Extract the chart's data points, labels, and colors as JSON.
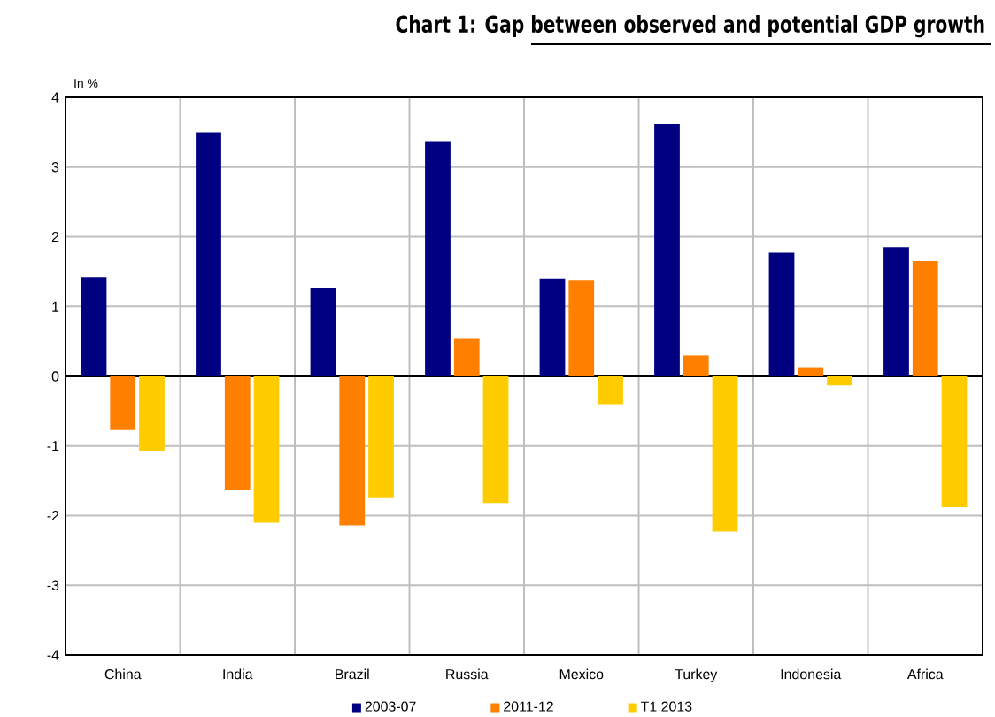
{
  "chart_data": {
    "type": "bar",
    "title": "Chart 1: Gap between observed and potential GDP growth",
    "ylabel": "In %",
    "categories": [
      "China",
      "India",
      "Brazil",
      "Russia",
      "Mexico",
      "Turkey",
      "Indonesia",
      "Africa"
    ],
    "series": [
      {
        "name": "2003-07",
        "color": "#000080",
        "values": [
          1.42,
          3.5,
          1.27,
          3.37,
          1.4,
          3.62,
          1.77,
          1.85
        ]
      },
      {
        "name": "2011-12",
        "color": "#ff7f00",
        "values": [
          -0.77,
          -1.63,
          -2.14,
          0.54,
          1.38,
          0.3,
          0.12,
          1.65
        ]
      },
      {
        "name": "T1 2013",
        "color": "#ffcc00",
        "values": [
          -1.07,
          -2.1,
          -1.75,
          -1.82,
          -0.4,
          -2.23,
          -0.13,
          -1.88
        ]
      }
    ],
    "ylim": [
      -4,
      4
    ],
    "yticks": [
      -4,
      -3,
      -2,
      -1,
      0,
      1,
      2,
      3,
      4
    ],
    "grid": true,
    "legend": "bottom"
  }
}
